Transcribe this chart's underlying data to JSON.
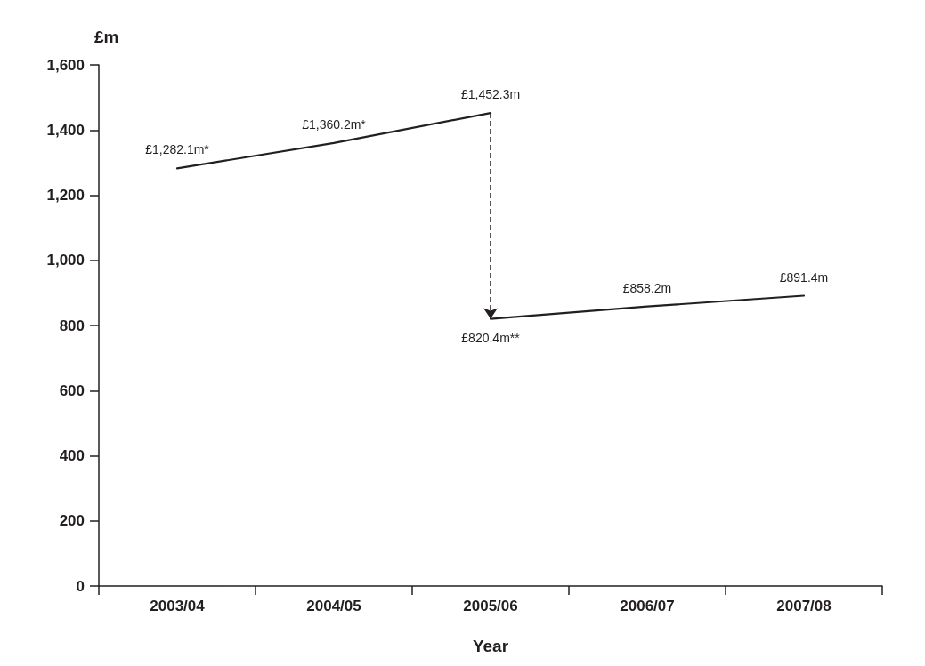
{
  "chart_data": {
    "type": "line",
    "xlabel": "Year",
    "ylabel": "£m",
    "categories": [
      "2003/04",
      "2004/05",
      "2005/06",
      "2006/07",
      "2007/08"
    ],
    "series": [
      {
        "color": "#231f20",
        "values": [
          1282.1,
          1360.2,
          1452.3,
          null,
          null
        ],
        "value_labels": [
          "£1,282.1m*",
          "£1,360.2m*",
          "£1,452.3m",
          null,
          null
        ]
      },
      {
        "color": "#231f20",
        "values": [
          null,
          null,
          820.4,
          858.2,
          891.4
        ],
        "value_labels": [
          null,
          null,
          "£820.4m**",
          "£858.2m",
          "£891.4m"
        ]
      }
    ],
    "ylim": [
      0,
      1600
    ],
    "yticks": [
      0,
      200,
      400,
      600,
      800,
      {
        "value": 1000,
        "label": "1,000"
      },
      {
        "value": 1200,
        "label": "1,200"
      },
      {
        "value": 1400,
        "label": "1,400"
      },
      {
        "value": 1600,
        "label": "1,600"
      }
    ],
    "grid": false,
    "marker": "none",
    "line_style": "solid"
  }
}
